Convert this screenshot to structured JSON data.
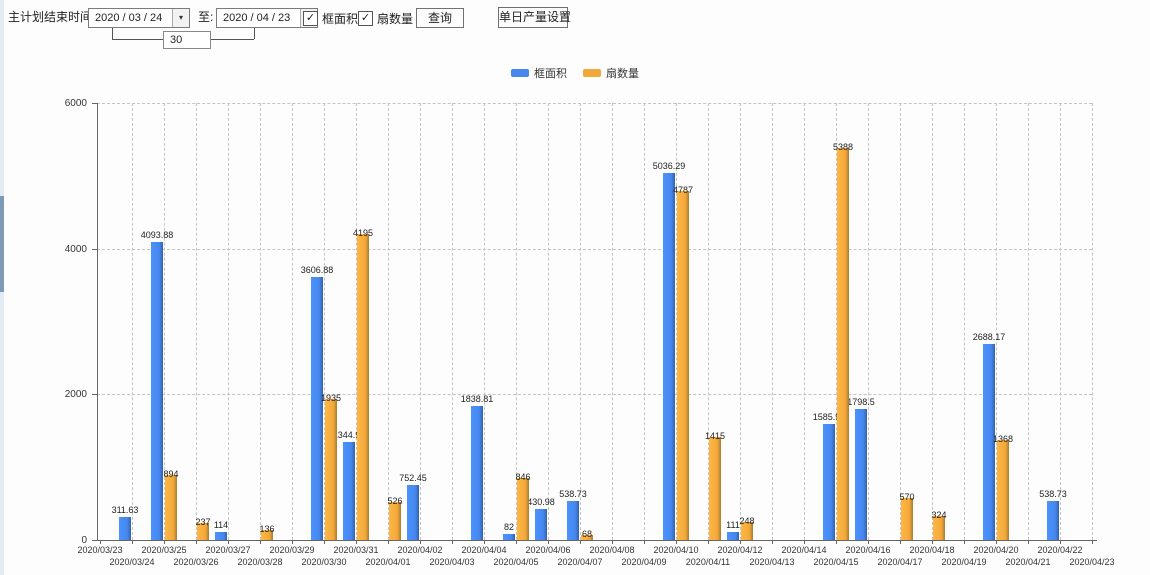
{
  "toolbar": {
    "plan_end_label": "主计划结束时间:",
    "date_from": "2020 / 03 / 24",
    "to_label": "至:",
    "date_to": "2020 / 04 / 23",
    "interval_days": "30",
    "dropdown_icon": "▾",
    "check_icon": "✓",
    "checkbox_area_label": "框面积",
    "checkbox_fan_label": "扇数量",
    "query_button": "查询",
    "daily_output_button": "单日产量设置"
  },
  "chart_data": {
    "type": "bar",
    "title": "",
    "xlabel": "",
    "ylabel": "",
    "ylim": [
      0,
      6000
    ],
    "yticks": [
      0,
      2000,
      4000,
      6000
    ],
    "grid": "dashed",
    "legend_position": "top-center",
    "bar_value_labels": true,
    "categories": [
      "2020/03/23",
      "2020/03/24",
      "2020/03/25",
      "2020/03/26",
      "2020/03/27",
      "2020/03/28",
      "2020/03/29",
      "2020/03/30",
      "2020/03/31",
      "2020/04/01",
      "2020/04/02",
      "2020/04/03",
      "2020/04/04",
      "2020/04/05",
      "2020/04/06",
      "2020/04/07",
      "2020/04/08",
      "2020/04/09",
      "2020/04/10",
      "2020/04/11",
      "2020/04/12",
      "2020/04/13",
      "2020/04/14",
      "2020/04/15",
      "2020/04/16",
      "2020/04/17",
      "2020/04/18",
      "2020/04/19",
      "2020/04/20",
      "2020/04/21",
      "2020/04/22",
      "2020/04/23"
    ],
    "series": [
      {
        "name": "框面积",
        "color": "#4587ec",
        "values": [
          null,
          311.63,
          4093.88,
          null,
          114,
          null,
          null,
          3606.88,
          1344.95,
          null,
          752.45,
          null,
          1838.81,
          82,
          430.98,
          538.73,
          null,
          null,
          5036.29,
          null,
          111,
          null,
          null,
          1585.96,
          1798.5,
          null,
          null,
          null,
          2688.17,
          null,
          538.73,
          null
        ]
      },
      {
        "name": "扇数量",
        "color": "#f2a93c",
        "values": [
          null,
          null,
          894,
          237,
          null,
          136,
          null,
          1935,
          4195,
          526,
          null,
          null,
          null,
          846,
          null,
          68,
          null,
          null,
          4787,
          1415,
          248,
          null,
          null,
          5388,
          null,
          570,
          324,
          null,
          1368,
          null,
          null,
          null
        ]
      }
    ]
  }
}
